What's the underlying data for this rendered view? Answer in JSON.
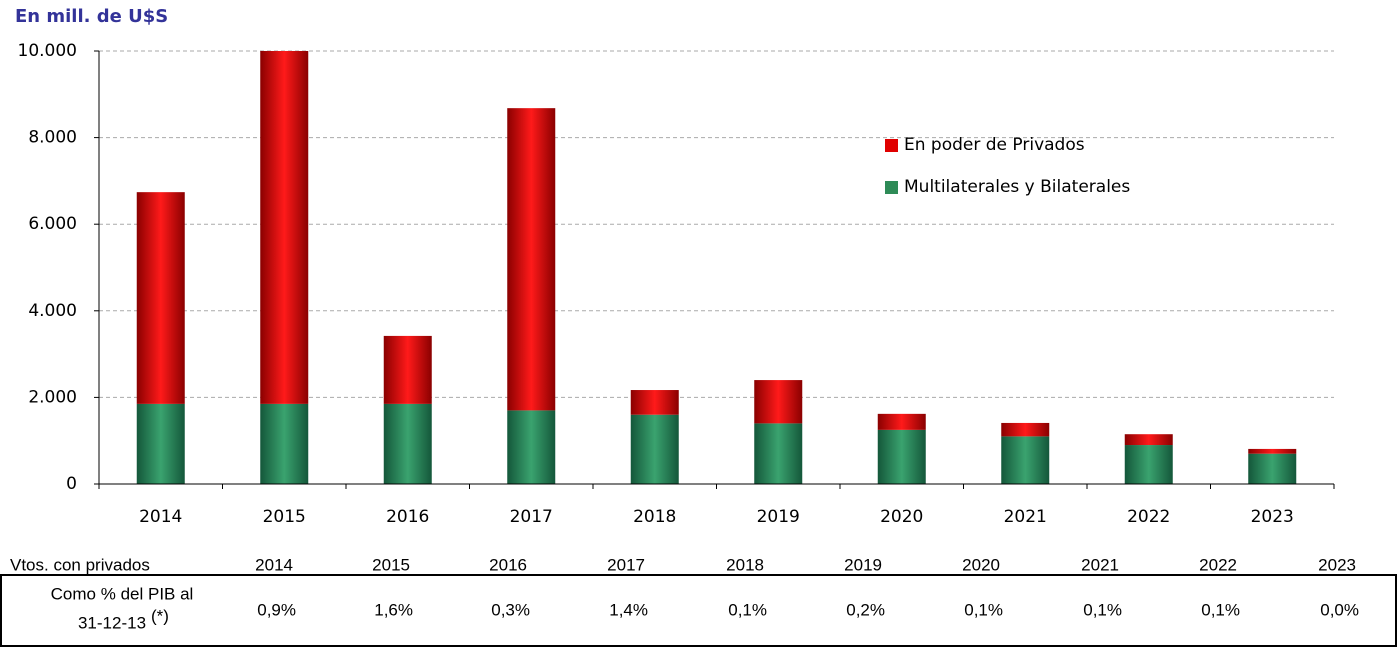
{
  "chart_data": {
    "type": "stacked_bar",
    "title": "En mill. de U$S",
    "categories": [
      "2014",
      "2015",
      "2016",
      "2017",
      "2018",
      "2019",
      "2020",
      "2021",
      "2022",
      "2023"
    ],
    "series": [
      {
        "name": "Multilaterales y Bilaterales",
        "color": "#2e8b57",
        "values": [
          1850,
          1850,
          1850,
          1700,
          1600,
          1400,
          1250,
          1100,
          900,
          700
        ]
      },
      {
        "name": "En poder de Privados",
        "color": "#e00000",
        "values": [
          4890,
          8150,
          1570,
          6980,
          570,
          1000,
          370,
          310,
          250,
          110
        ]
      }
    ],
    "ylim": [
      0,
      10000
    ],
    "yticks": [
      0,
      {
        "value": 2000,
        "label": "2.000"
      },
      {
        "value": 4000,
        "label": "4.000"
      },
      {
        "value": 6000,
        "label": "6.000"
      },
      {
        "value": 8000,
        "label": "8.000"
      },
      {
        "value": 10000,
        "label": "10.000"
      }
    ],
    "grid": true,
    "legend": "upper right"
  },
  "table": {
    "header": [
      "Vtos. con privados",
      "2014",
      "2015",
      "2016",
      "2017",
      "2018",
      "2019",
      "2020",
      "2021",
      "2022",
      "2023"
    ],
    "row_label": "Como % del PIB al",
    "row_label_2": "31-12-13",
    "row_note": "(*)",
    "row": [
      "0,9%",
      "1,6%",
      "0,3%",
      "1,4%",
      "0,1%",
      "0,2%",
      "0,1%",
      "0,1%",
      "0,1%",
      "0,0%"
    ]
  }
}
